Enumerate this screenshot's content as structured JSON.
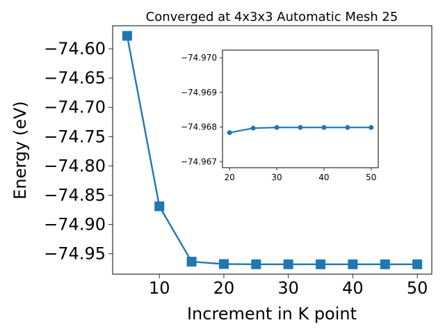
{
  "chart_data": [
    {
      "type": "line",
      "title": "Converged at 4x3x3 Automatic Mesh 25",
      "xlabel": "Increment in K point",
      "ylabel": "Energy (eV)",
      "x": [
        5,
        10,
        15,
        20,
        25,
        30,
        35,
        40,
        45,
        50
      ],
      "series": [
        {
          "values": [
            -74.578,
            -74.869,
            -74.9635,
            -74.9675,
            -74.9679,
            -74.96795,
            -74.96795,
            -74.96795,
            -74.96795,
            -74.96795
          ]
        }
      ],
      "marker": "square",
      "xticks": [
        10,
        20,
        30,
        40,
        50
      ],
      "xtick_labels": [
        "10",
        "20",
        "30",
        "40",
        "50"
      ],
      "yticks": [
        -74.6,
        -74.65,
        -74.7,
        -74.75,
        -74.8,
        -74.85,
        -74.9,
        -74.95
      ],
      "ytick_labels": [
        "−74.60",
        "−74.65",
        "−74.70",
        "−74.75",
        "−74.80",
        "−74.85",
        "−74.90",
        "−74.95"
      ],
      "xlim": [
        2.75,
        52.25
      ],
      "ylim": [
        -74.9848,
        -74.5608
      ],
      "grid": false,
      "color": "#1f77b4"
    },
    {
      "type": "line",
      "title": "",
      "xlabel": "",
      "ylabel": "",
      "x": [
        20,
        25,
        30,
        35,
        40,
        45,
        50
      ],
      "series": [
        {
          "values": [
            -74.96784,
            -74.96797,
            -74.96799,
            -74.96799,
            -74.96799,
            -74.96799,
            -74.96799
          ]
        }
      ],
      "marker": "circle",
      "xticks": [
        20,
        30,
        40,
        50
      ],
      "xtick_labels": [
        "20",
        "30",
        "40",
        "50"
      ],
      "yticks": [
        -74.97,
        -74.969,
        -74.968,
        -74.967
      ],
      "ytick_labels": [
        "−74.970",
        "−74.969",
        "−74.968",
        "−74.967"
      ],
      "xlim": [
        18.5,
        51.5
      ],
      "ylim": [
        -74.96683,
        -74.97022
      ],
      "y_inverted": true,
      "grid": false,
      "color": "#1f77b4"
    }
  ]
}
